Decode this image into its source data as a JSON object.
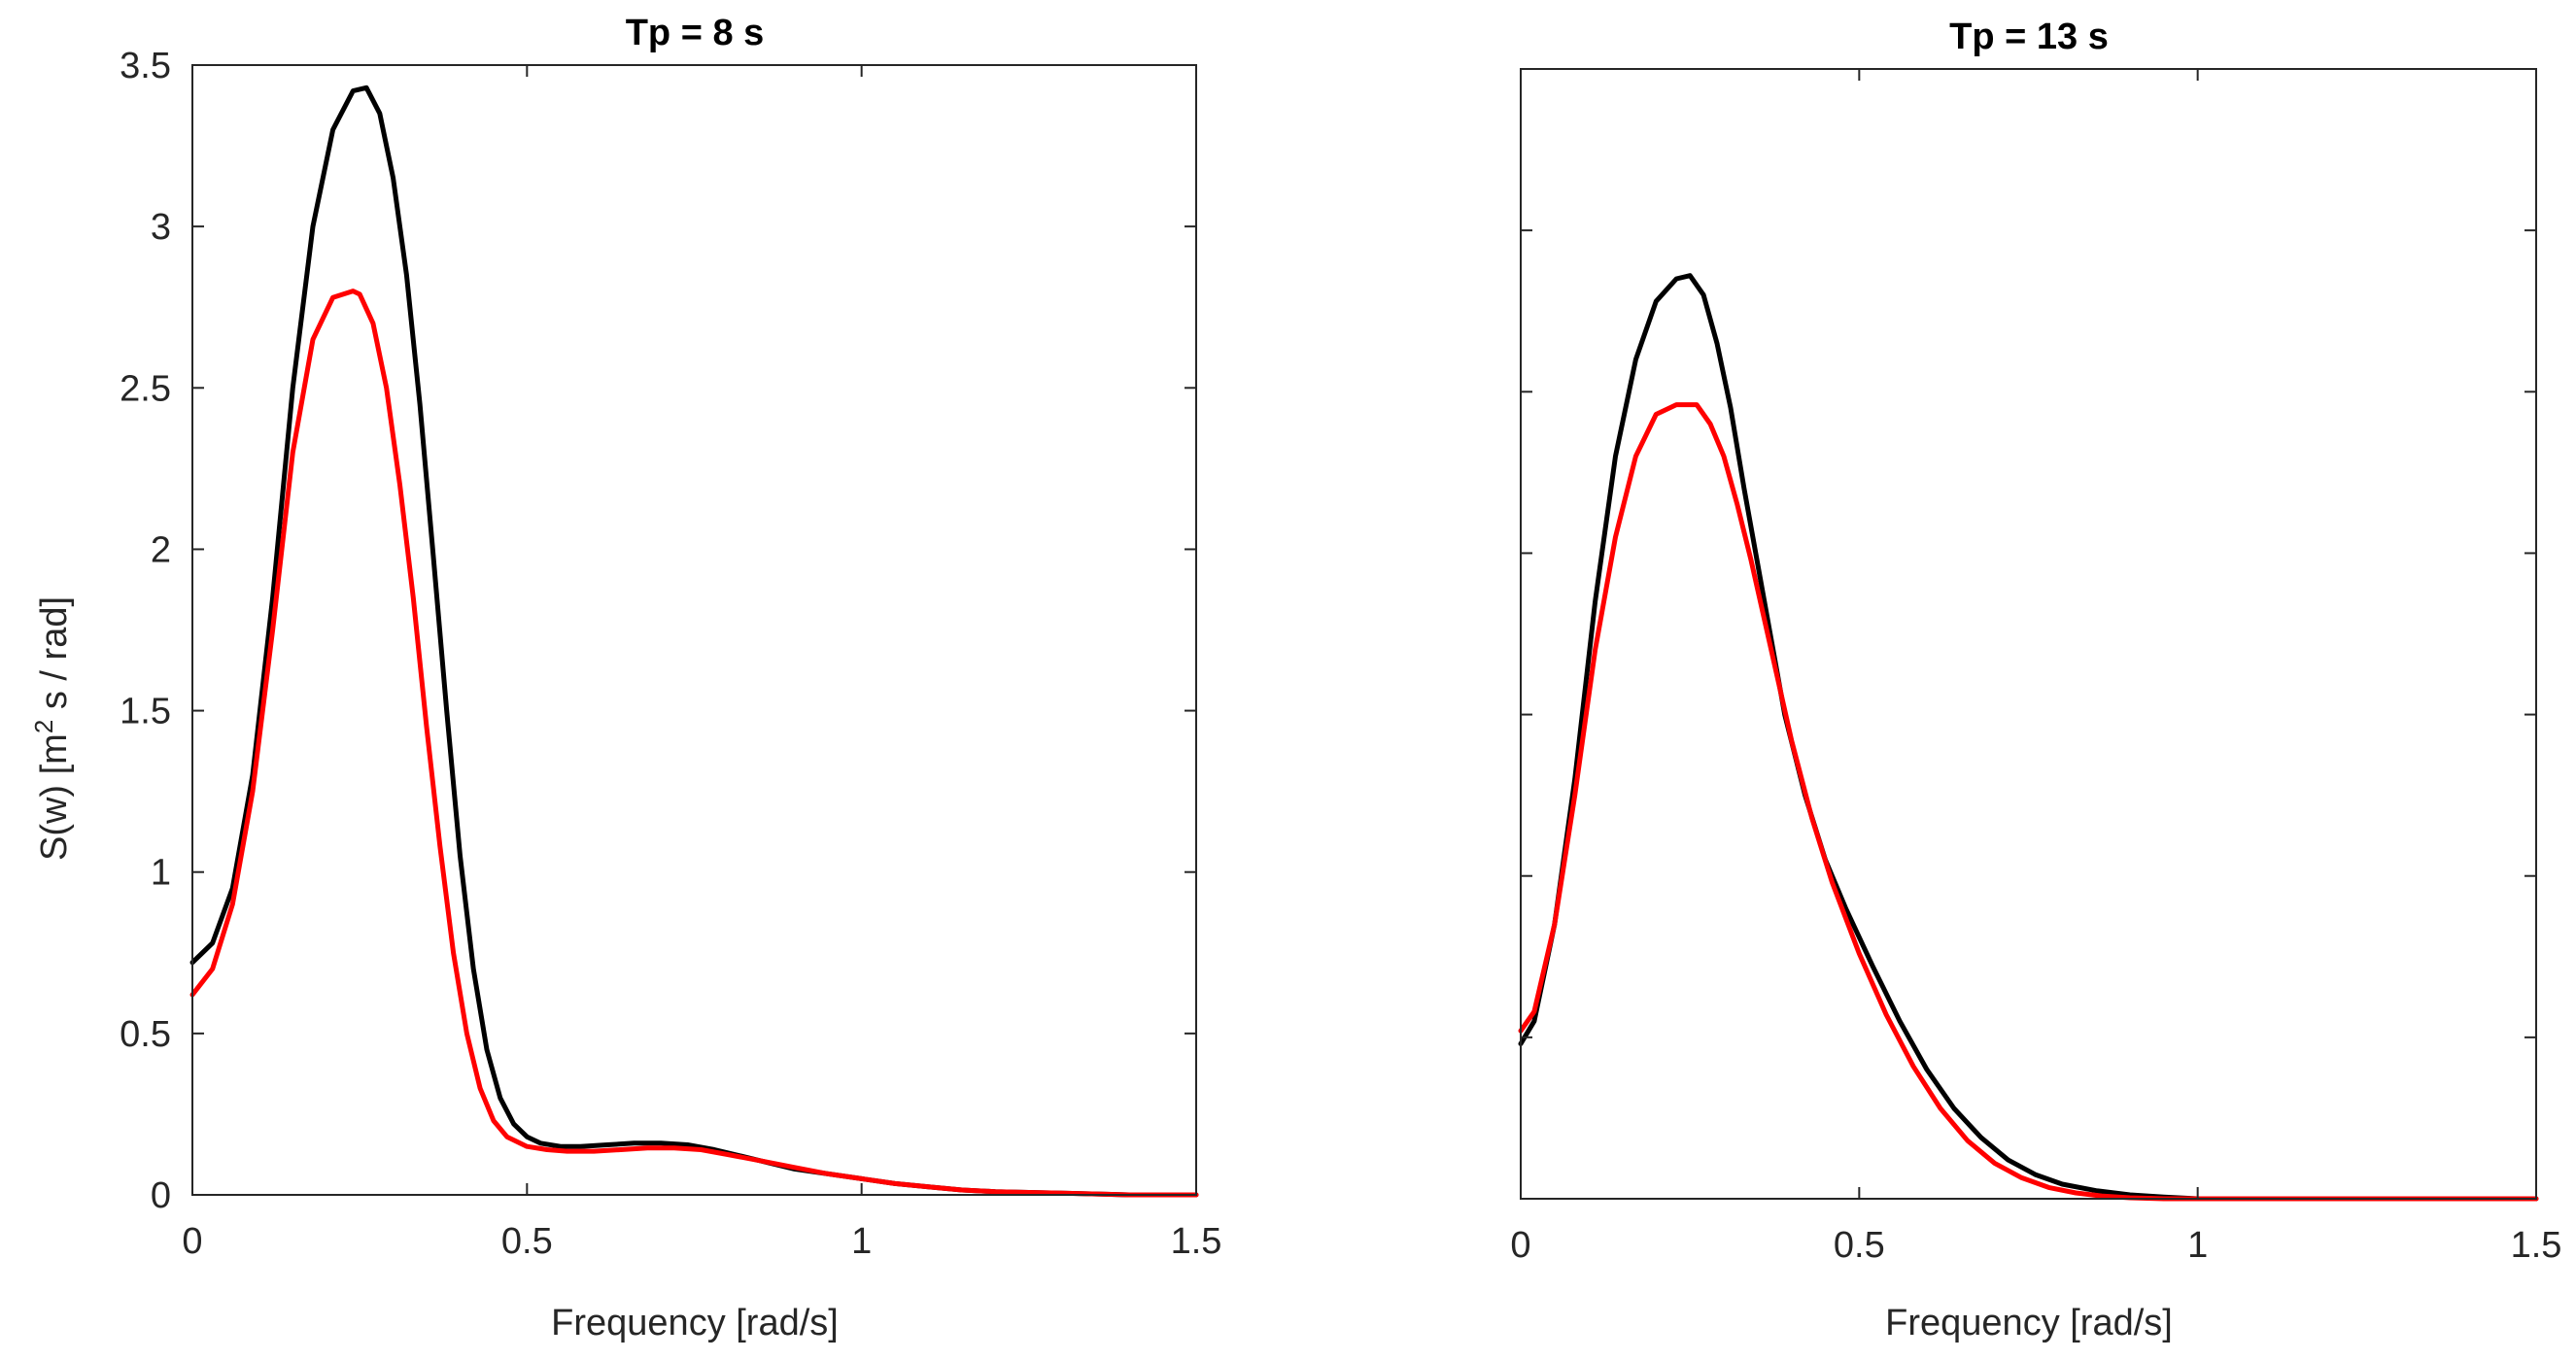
{
  "chart_data": [
    {
      "type": "line",
      "title": "Tp = 8 s",
      "xlabel": "Frequency [rad/s]",
      "ylabel": {
        "prefix": "S(w) [m",
        "sup": "2",
        "suffix": " s / rad]"
      },
      "xlim": [
        0,
        1.5
      ],
      "ylim": [
        0,
        3.5
      ],
      "xticks": [
        0,
        0.5,
        1,
        1.5
      ],
      "xtick_labels": [
        "0",
        "0.5",
        "1",
        "1.5"
      ],
      "yticks": [
        0,
        0.5,
        1,
        1.5,
        2,
        2.5,
        3,
        3.5
      ],
      "ytick_labels": [
        "0",
        "0.5",
        "1",
        "1.5",
        "2",
        "2.5",
        "3",
        "3.5"
      ],
      "grid": false,
      "series": [
        {
          "color": "#000000",
          "x": [
            0,
            0.03,
            0.06,
            0.09,
            0.12,
            0.15,
            0.18,
            0.21,
            0.24,
            0.26,
            0.28,
            0.3,
            0.32,
            0.34,
            0.36,
            0.38,
            0.4,
            0.42,
            0.44,
            0.46,
            0.48,
            0.5,
            0.52,
            0.55,
            0.58,
            0.62,
            0.66,
            0.7,
            0.74,
            0.78,
            0.82,
            0.86,
            0.9,
            0.95,
            1.0,
            1.05,
            1.1,
            1.15,
            1.2,
            1.3,
            1.4,
            1.5
          ],
          "y": [
            0.72,
            0.78,
            0.95,
            1.3,
            1.85,
            2.5,
            3.0,
            3.3,
            3.42,
            3.43,
            3.35,
            3.15,
            2.85,
            2.45,
            1.98,
            1.5,
            1.05,
            0.7,
            0.45,
            0.3,
            0.22,
            0.18,
            0.16,
            0.15,
            0.15,
            0.155,
            0.16,
            0.16,
            0.155,
            0.14,
            0.12,
            0.1,
            0.08,
            0.065,
            0.05,
            0.035,
            0.025,
            0.015,
            0.01,
            0.005,
            0.0,
            0.0
          ]
        },
        {
          "color": "#ff0000",
          "x": [
            0,
            0.03,
            0.06,
            0.09,
            0.12,
            0.15,
            0.18,
            0.21,
            0.24,
            0.25,
            0.27,
            0.29,
            0.31,
            0.33,
            0.35,
            0.37,
            0.39,
            0.41,
            0.43,
            0.45,
            0.47,
            0.5,
            0.53,
            0.56,
            0.6,
            0.64,
            0.68,
            0.72,
            0.76,
            0.8,
            0.85,
            0.9,
            0.95,
            1.0,
            1.05,
            1.1,
            1.15,
            1.2,
            1.3,
            1.4,
            1.5
          ],
          "y": [
            0.62,
            0.7,
            0.9,
            1.25,
            1.75,
            2.3,
            2.65,
            2.78,
            2.8,
            2.79,
            2.7,
            2.5,
            2.2,
            1.85,
            1.45,
            1.08,
            0.75,
            0.5,
            0.33,
            0.23,
            0.18,
            0.15,
            0.14,
            0.135,
            0.135,
            0.14,
            0.145,
            0.145,
            0.14,
            0.125,
            0.105,
            0.085,
            0.065,
            0.05,
            0.035,
            0.025,
            0.015,
            0.01,
            0.005,
            0.0,
            0.0
          ]
        }
      ]
    },
    {
      "type": "line",
      "title": "Tp = 13 s",
      "xlabel": "Frequency [rad/s]",
      "ylabel": "",
      "xlim": [
        0,
        1.5
      ],
      "ylim": [
        0,
        3.5
      ],
      "xticks": [
        0,
        0.5,
        1,
        1.5
      ],
      "xtick_labels": [
        "0",
        "0.5",
        "1",
        "1.5"
      ],
      "yticks": [
        0,
        0.5,
        1,
        1.5,
        2,
        2.5,
        3,
        3.5
      ],
      "ytick_labels": [],
      "grid": false,
      "series": [
        {
          "color": "#000000",
          "x": [
            0,
            0.02,
            0.05,
            0.08,
            0.11,
            0.14,
            0.17,
            0.2,
            0.23,
            0.25,
            0.27,
            0.29,
            0.31,
            0.33,
            0.36,
            0.39,
            0.42,
            0.45,
            0.48,
            0.52,
            0.56,
            0.6,
            0.64,
            0.68,
            0.72,
            0.76,
            0.8,
            0.85,
            0.9,
            0.95,
            1.0,
            1.1,
            1.2,
            1.3,
            1.4,
            1.5
          ],
          "y": [
            0.48,
            0.55,
            0.85,
            1.3,
            1.85,
            2.3,
            2.6,
            2.78,
            2.85,
            2.86,
            2.8,
            2.65,
            2.45,
            2.2,
            1.85,
            1.5,
            1.25,
            1.05,
            0.9,
            0.72,
            0.55,
            0.4,
            0.28,
            0.19,
            0.12,
            0.075,
            0.045,
            0.025,
            0.012,
            0.005,
            0.0,
            0.0,
            0.0,
            0.0,
            0.0,
            0.0
          ]
        },
        {
          "color": "#ff0000",
          "x": [
            0,
            0.02,
            0.05,
            0.08,
            0.11,
            0.14,
            0.17,
            0.2,
            0.23,
            0.26,
            0.28,
            0.3,
            0.32,
            0.34,
            0.37,
            0.4,
            0.43,
            0.46,
            0.5,
            0.54,
            0.58,
            0.62,
            0.66,
            0.7,
            0.74,
            0.78,
            0.82,
            0.86,
            0.9,
            0.95,
            1.0,
            1.1,
            1.2,
            1.3,
            1.4,
            1.5
          ],
          "y": [
            0.52,
            0.58,
            0.85,
            1.25,
            1.7,
            2.05,
            2.3,
            2.43,
            2.46,
            2.46,
            2.4,
            2.3,
            2.15,
            1.98,
            1.7,
            1.42,
            1.18,
            0.98,
            0.76,
            0.57,
            0.41,
            0.28,
            0.18,
            0.11,
            0.065,
            0.035,
            0.018,
            0.008,
            0.003,
            0.0,
            0.0,
            0.0,
            0.0,
            0.0,
            0.0,
            0.0
          ]
        }
      ]
    }
  ]
}
